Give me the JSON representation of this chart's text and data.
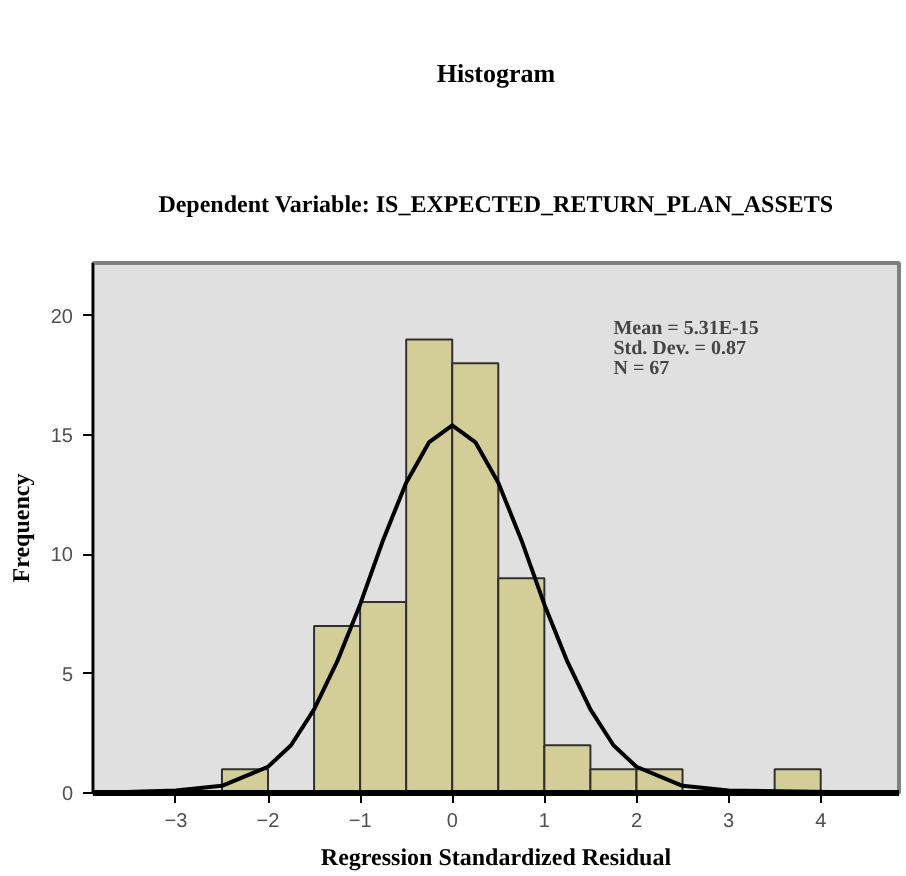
{
  "chart_data": {
    "type": "histogram",
    "title": "Histogram",
    "subtitle": "Dependent Variable: IS_EXPECTED_RETURN_PLAN_ASSETS",
    "xlabel": "Regression Standardized Residual",
    "ylabel": "Frequency",
    "bins": [
      -2.5,
      -2.0,
      -1.5,
      -1.0,
      -0.5,
      0.0,
      0.5,
      1.0,
      1.5,
      2.0,
      2.5,
      3.0,
      3.5,
      4.0
    ],
    "values": [
      1,
      0,
      7,
      8,
      19,
      18,
      9,
      2,
      1,
      1,
      0,
      0,
      1
    ],
    "color": "#d3ce97",
    "series": [
      {
        "type": "line",
        "color": "#000000",
        "x": [
          -3.9,
          -3.0,
          -2.5,
          -2.0,
          -1.75,
          -1.5,
          -1.25,
          -1.0,
          -0.75,
          -0.5,
          -0.25,
          0.0,
          0.25,
          0.5,
          0.75,
          1.0,
          1.25,
          1.5,
          1.75,
          2.0,
          2.5,
          3.0,
          4.85
        ],
        "values": [
          0.0,
          0.1,
          0.3,
          1.1,
          2.0,
          3.5,
          5.5,
          7.9,
          10.6,
          13.0,
          14.7,
          15.4,
          14.7,
          13.0,
          10.6,
          7.9,
          5.5,
          3.5,
          2.0,
          1.1,
          0.3,
          0.1,
          0.0
        ]
      }
    ],
    "xlim": [
      -3.9,
      4.85
    ],
    "ylim": [
      0,
      22.2
    ],
    "xticks": [
      -3,
      -2,
      -1,
      0,
      1,
      2,
      3,
      4
    ],
    "yticks": [
      0,
      5,
      10,
      15,
      20
    ],
    "annotations": [
      "Mean = 5.31E-15\nStd. Dev. = 0.87\nN = 67"
    ]
  }
}
